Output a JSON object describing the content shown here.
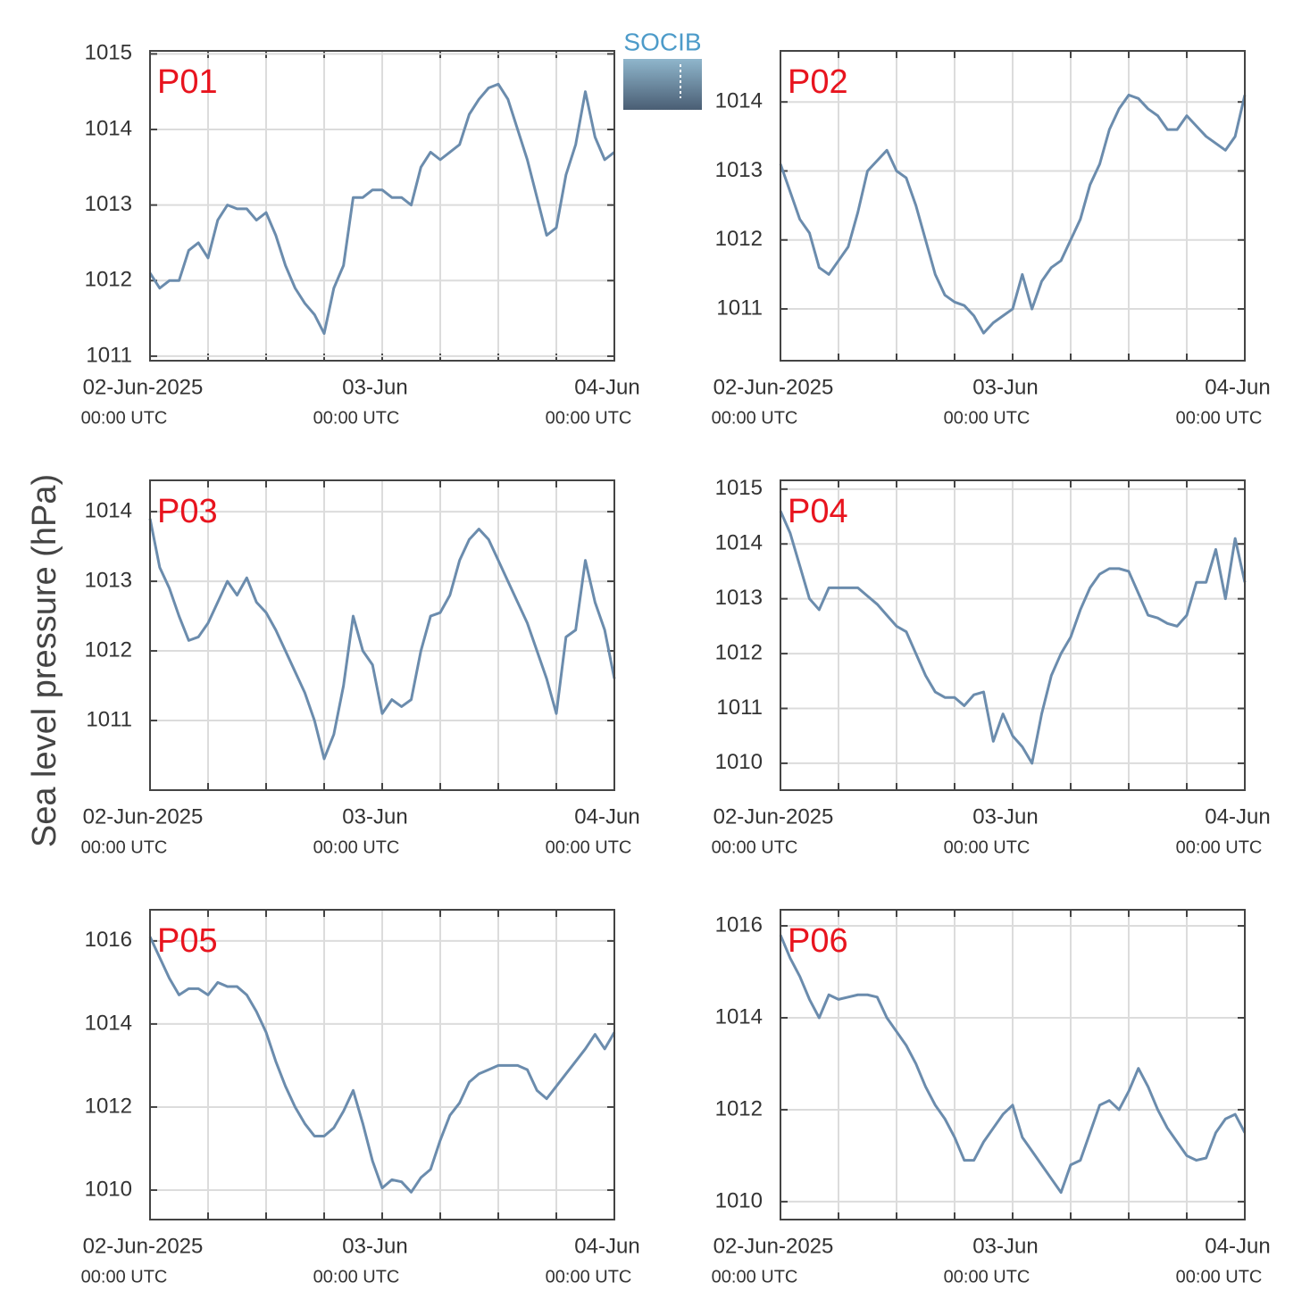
{
  "ylabel": "Sea level pressure (hPa)",
  "logo": "SOCIB",
  "chart_data": [
    {
      "type": "line",
      "title": "P01",
      "color": "#6b8cad",
      "x": [
        0,
        1,
        2,
        3,
        4,
        5,
        6,
        7,
        8,
        9,
        10,
        11,
        12,
        13,
        14,
        15,
        16,
        17,
        18,
        19,
        20,
        21,
        22,
        23,
        24,
        25,
        26,
        27,
        28,
        29,
        30,
        31,
        32,
        33,
        34,
        35,
        36,
        37,
        38,
        39,
        40,
        41,
        42,
        43,
        44,
        45,
        46,
        47,
        48
      ],
      "values": [
        1012.1,
        1011.9,
        1012.0,
        1012.0,
        1012.4,
        1012.5,
        1012.3,
        1012.8,
        1013.0,
        1012.95,
        1012.95,
        1012.8,
        1012.9,
        1012.6,
        1012.2,
        1011.9,
        1011.7,
        1011.55,
        1011.3,
        1011.9,
        1012.2,
        1013.1,
        1013.1,
        1013.2,
        1013.2,
        1013.1,
        1013.1,
        1013.0,
        1013.5,
        1013.7,
        1013.6,
        1013.7,
        1013.8,
        1014.2,
        1014.4,
        1014.55,
        1014.6,
        1014.4,
        1014.0,
        1013.6,
        1013.1,
        1012.6,
        1012.7,
        1013.4,
        1013.8,
        1014.5,
        1013.9,
        1013.6,
        1013.7
      ],
      "xlim": [
        0,
        48
      ],
      "ylim": [
        1010.94,
        1015.04
      ],
      "yticks": [
        1011,
        1012,
        1013,
        1014,
        1015
      ],
      "xticks": [
        {
          "value": 0,
          "label": "02-Jun-2025",
          "sublabel": "00:00 UTC"
        },
        {
          "value": 24,
          "label": "03-Jun",
          "sublabel": "00:00 UTC"
        },
        {
          "value": 48,
          "label": "04-Jun",
          "sublabel": "00:00 UTC"
        }
      ],
      "xminor": [
        6,
        12,
        18,
        30,
        36,
        42
      ],
      "grid": true
    },
    {
      "type": "line",
      "title": "P02",
      "color": "#6b8cad",
      "x": [
        0,
        1,
        2,
        3,
        4,
        5,
        6,
        7,
        8,
        9,
        10,
        11,
        12,
        13,
        14,
        15,
        16,
        17,
        18,
        19,
        20,
        21,
        22,
        23,
        24,
        25,
        26,
        27,
        28,
        29,
        30,
        31,
        32,
        33,
        34,
        35,
        36,
        37,
        38,
        39,
        40,
        41,
        42,
        43,
        44,
        45,
        46,
        47,
        48
      ],
      "values": [
        1013.1,
        1012.7,
        1012.3,
        1012.1,
        1011.6,
        1011.5,
        1011.7,
        1011.9,
        1012.4,
        1013.0,
        1013.15,
        1013.3,
        1013.0,
        1012.9,
        1012.5,
        1012.0,
        1011.5,
        1011.2,
        1011.1,
        1011.05,
        1010.9,
        1010.65,
        1010.8,
        1010.9,
        1011.0,
        1011.5,
        1011.0,
        1011.4,
        1011.6,
        1011.7,
        1012.0,
        1012.3,
        1012.8,
        1013.1,
        1013.6,
        1013.9,
        1014.1,
        1014.05,
        1013.9,
        1013.8,
        1013.6,
        1013.6,
        1013.8,
        1013.65,
        1013.5,
        1013.4,
        1013.3,
        1013.5,
        1014.1
      ],
      "xlim": [
        0,
        48
      ],
      "ylim": [
        1010.25,
        1014.74
      ],
      "yticks": [
        1011,
        1012,
        1013,
        1014
      ],
      "xticks": [
        {
          "value": 0,
          "label": "02-Jun-2025",
          "sublabel": "00:00 UTC"
        },
        {
          "value": 24,
          "label": "03-Jun",
          "sublabel": "00:00 UTC"
        },
        {
          "value": 48,
          "label": "04-Jun",
          "sublabel": "00:00 UTC"
        }
      ],
      "xminor": [
        6,
        12,
        18,
        30,
        36,
        42
      ],
      "grid": true
    },
    {
      "type": "line",
      "title": "P03",
      "color": "#6b8cad",
      "x": [
        0,
        1,
        2,
        3,
        4,
        5,
        6,
        7,
        8,
        9,
        10,
        11,
        12,
        13,
        14,
        15,
        16,
        17,
        18,
        19,
        20,
        21,
        22,
        23,
        24,
        25,
        26,
        27,
        28,
        29,
        30,
        31,
        32,
        33,
        34,
        35,
        36,
        37,
        38,
        39,
        40,
        41,
        42,
        43,
        44,
        45,
        46,
        47,
        48
      ],
      "values": [
        1013.9,
        1013.2,
        1012.9,
        1012.5,
        1012.15,
        1012.2,
        1012.4,
        1012.7,
        1013.0,
        1012.8,
        1013.05,
        1012.7,
        1012.55,
        1012.3,
        1012.0,
        1011.7,
        1011.4,
        1011.0,
        1010.45,
        1010.8,
        1011.5,
        1012.5,
        1012.0,
        1011.8,
        1011.1,
        1011.3,
        1011.2,
        1011.3,
        1012.0,
        1012.5,
        1012.55,
        1012.8,
        1013.3,
        1013.6,
        1013.75,
        1013.6,
        1013.3,
        1013.0,
        1012.7,
        1012.4,
        1012.0,
        1011.6,
        1011.1,
        1012.2,
        1012.3,
        1013.3,
        1012.7,
        1012.3,
        1011.6
      ],
      "xlim": [
        0,
        48
      ],
      "ylim": [
        1010.0,
        1014.45
      ],
      "yticks": [
        1011,
        1012,
        1013,
        1014
      ],
      "xticks": [
        {
          "value": 0,
          "label": "02-Jun-2025",
          "sublabel": "00:00 UTC"
        },
        {
          "value": 24,
          "label": "03-Jun",
          "sublabel": "00:00 UTC"
        },
        {
          "value": 48,
          "label": "04-Jun",
          "sublabel": "00:00 UTC"
        }
      ],
      "xminor": [
        6,
        12,
        18,
        30,
        36,
        42
      ],
      "grid": true
    },
    {
      "type": "line",
      "title": "P04",
      "color": "#6b8cad",
      "x": [
        0,
        1,
        2,
        3,
        4,
        5,
        6,
        7,
        8,
        9,
        10,
        11,
        12,
        13,
        14,
        15,
        16,
        17,
        18,
        19,
        20,
        21,
        22,
        23,
        24,
        25,
        26,
        27,
        28,
        29,
        30,
        31,
        32,
        33,
        34,
        35,
        36,
        37,
        38,
        39,
        40,
        41,
        42,
        43,
        44,
        45,
        46,
        47,
        48
      ],
      "values": [
        1014.6,
        1014.2,
        1013.6,
        1013.0,
        1012.8,
        1013.2,
        1013.2,
        1013.2,
        1013.2,
        1013.05,
        1012.9,
        1012.7,
        1012.5,
        1012.4,
        1012.0,
        1011.6,
        1011.3,
        1011.2,
        1011.2,
        1011.05,
        1011.25,
        1011.3,
        1010.4,
        1010.9,
        1010.5,
        1010.3,
        1010.0,
        1010.9,
        1011.6,
        1012.0,
        1012.3,
        1012.8,
        1013.2,
        1013.45,
        1013.55,
        1013.55,
        1013.5,
        1013.1,
        1012.7,
        1012.65,
        1012.55,
        1012.5,
        1012.7,
        1013.3,
        1013.3,
        1013.9,
        1013.0,
        1014.1,
        1013.3
      ],
      "xlim": [
        0,
        48
      ],
      "ylim": [
        1009.51,
        1015.16
      ],
      "yticks": [
        1010,
        1011,
        1012,
        1013,
        1014,
        1015
      ],
      "xticks": [
        {
          "value": 0,
          "label": "02-Jun-2025",
          "sublabel": "00:00 UTC"
        },
        {
          "value": 24,
          "label": "03-Jun",
          "sublabel": "00:00 UTC"
        },
        {
          "value": 48,
          "label": "04-Jun",
          "sublabel": "00:00 UTC"
        }
      ],
      "xminor": [
        6,
        12,
        18,
        30,
        36,
        42
      ],
      "grid": true
    },
    {
      "type": "line",
      "title": "P05",
      "color": "#6b8cad",
      "x": [
        0,
        1,
        2,
        3,
        4,
        5,
        6,
        7,
        8,
        9,
        10,
        11,
        12,
        13,
        14,
        15,
        16,
        17,
        18,
        19,
        20,
        21,
        22,
        23,
        24,
        25,
        26,
        27,
        28,
        29,
        30,
        31,
        32,
        33,
        34,
        35,
        36,
        37,
        38,
        39,
        40,
        41,
        42,
        43,
        44,
        45,
        46,
        47,
        48
      ],
      "values": [
        1016.1,
        1015.6,
        1015.1,
        1014.7,
        1014.85,
        1014.85,
        1014.7,
        1015.0,
        1014.9,
        1014.9,
        1014.7,
        1014.3,
        1013.8,
        1013.1,
        1012.5,
        1012.0,
        1011.6,
        1011.3,
        1011.3,
        1011.5,
        1011.9,
        1012.4,
        1011.6,
        1010.7,
        1010.05,
        1010.25,
        1010.2,
        1009.95,
        1010.3,
        1010.5,
        1011.2,
        1011.8,
        1012.1,
        1012.6,
        1012.8,
        1012.9,
        1013.0,
        1013.0,
        1013.0,
        1012.9,
        1012.4,
        1012.2,
        1012.5,
        1012.8,
        1013.1,
        1013.4,
        1013.75,
        1013.4,
        1013.8
      ],
      "xlim": [
        0,
        48
      ],
      "ylim": [
        1009.29,
        1016.75
      ],
      "yticks": [
        1010,
        1012,
        1014,
        1016
      ],
      "xticks": [
        {
          "value": 0,
          "label": "02-Jun-2025",
          "sublabel": "00:00 UTC"
        },
        {
          "value": 24,
          "label": "03-Jun",
          "sublabel": "00:00 UTC"
        },
        {
          "value": 48,
          "label": "04-Jun",
          "sublabel": "00:00 UTC"
        }
      ],
      "xminor": [
        6,
        12,
        18,
        30,
        36,
        42
      ],
      "grid": true
    },
    {
      "type": "line",
      "title": "P06",
      "color": "#6b8cad",
      "x": [
        0,
        1,
        2,
        3,
        4,
        5,
        6,
        7,
        8,
        9,
        10,
        11,
        12,
        13,
        14,
        15,
        16,
        17,
        18,
        19,
        20,
        21,
        22,
        23,
        24,
        25,
        26,
        27,
        28,
        29,
        30,
        31,
        32,
        33,
        34,
        35,
        36,
        37,
        38,
        39,
        40,
        41,
        42,
        43,
        44,
        45,
        46,
        47,
        48
      ],
      "values": [
        1015.8,
        1015.3,
        1014.9,
        1014.4,
        1014.0,
        1014.5,
        1014.4,
        1014.45,
        1014.5,
        1014.5,
        1014.45,
        1014.0,
        1013.7,
        1013.4,
        1013.0,
        1012.5,
        1012.1,
        1011.8,
        1011.4,
        1010.9,
        1010.9,
        1011.3,
        1011.6,
        1011.9,
        1012.1,
        1011.4,
        1011.1,
        1010.8,
        1010.5,
        1010.2,
        1010.8,
        1010.9,
        1011.5,
        1012.1,
        1012.2,
        1012.0,
        1012.4,
        1012.9,
        1012.5,
        1012.0,
        1011.6,
        1011.3,
        1011.0,
        1010.9,
        1010.95,
        1011.5,
        1011.8,
        1011.9,
        1011.5
      ],
      "xlim": [
        0,
        48
      ],
      "ylim": [
        1009.61,
        1016.35
      ],
      "yticks": [
        1010,
        1012,
        1014,
        1016
      ],
      "xticks": [
        {
          "value": 0,
          "label": "02-Jun-2025",
          "sublabel": "00:00 UTC"
        },
        {
          "value": 24,
          "label": "03-Jun",
          "sublabel": "00:00 UTC"
        },
        {
          "value": 48,
          "label": "04-Jun",
          "sublabel": "00:00 UTC"
        }
      ],
      "xminor": [
        6,
        12,
        18,
        30,
        36,
        42
      ],
      "grid": true
    }
  ]
}
